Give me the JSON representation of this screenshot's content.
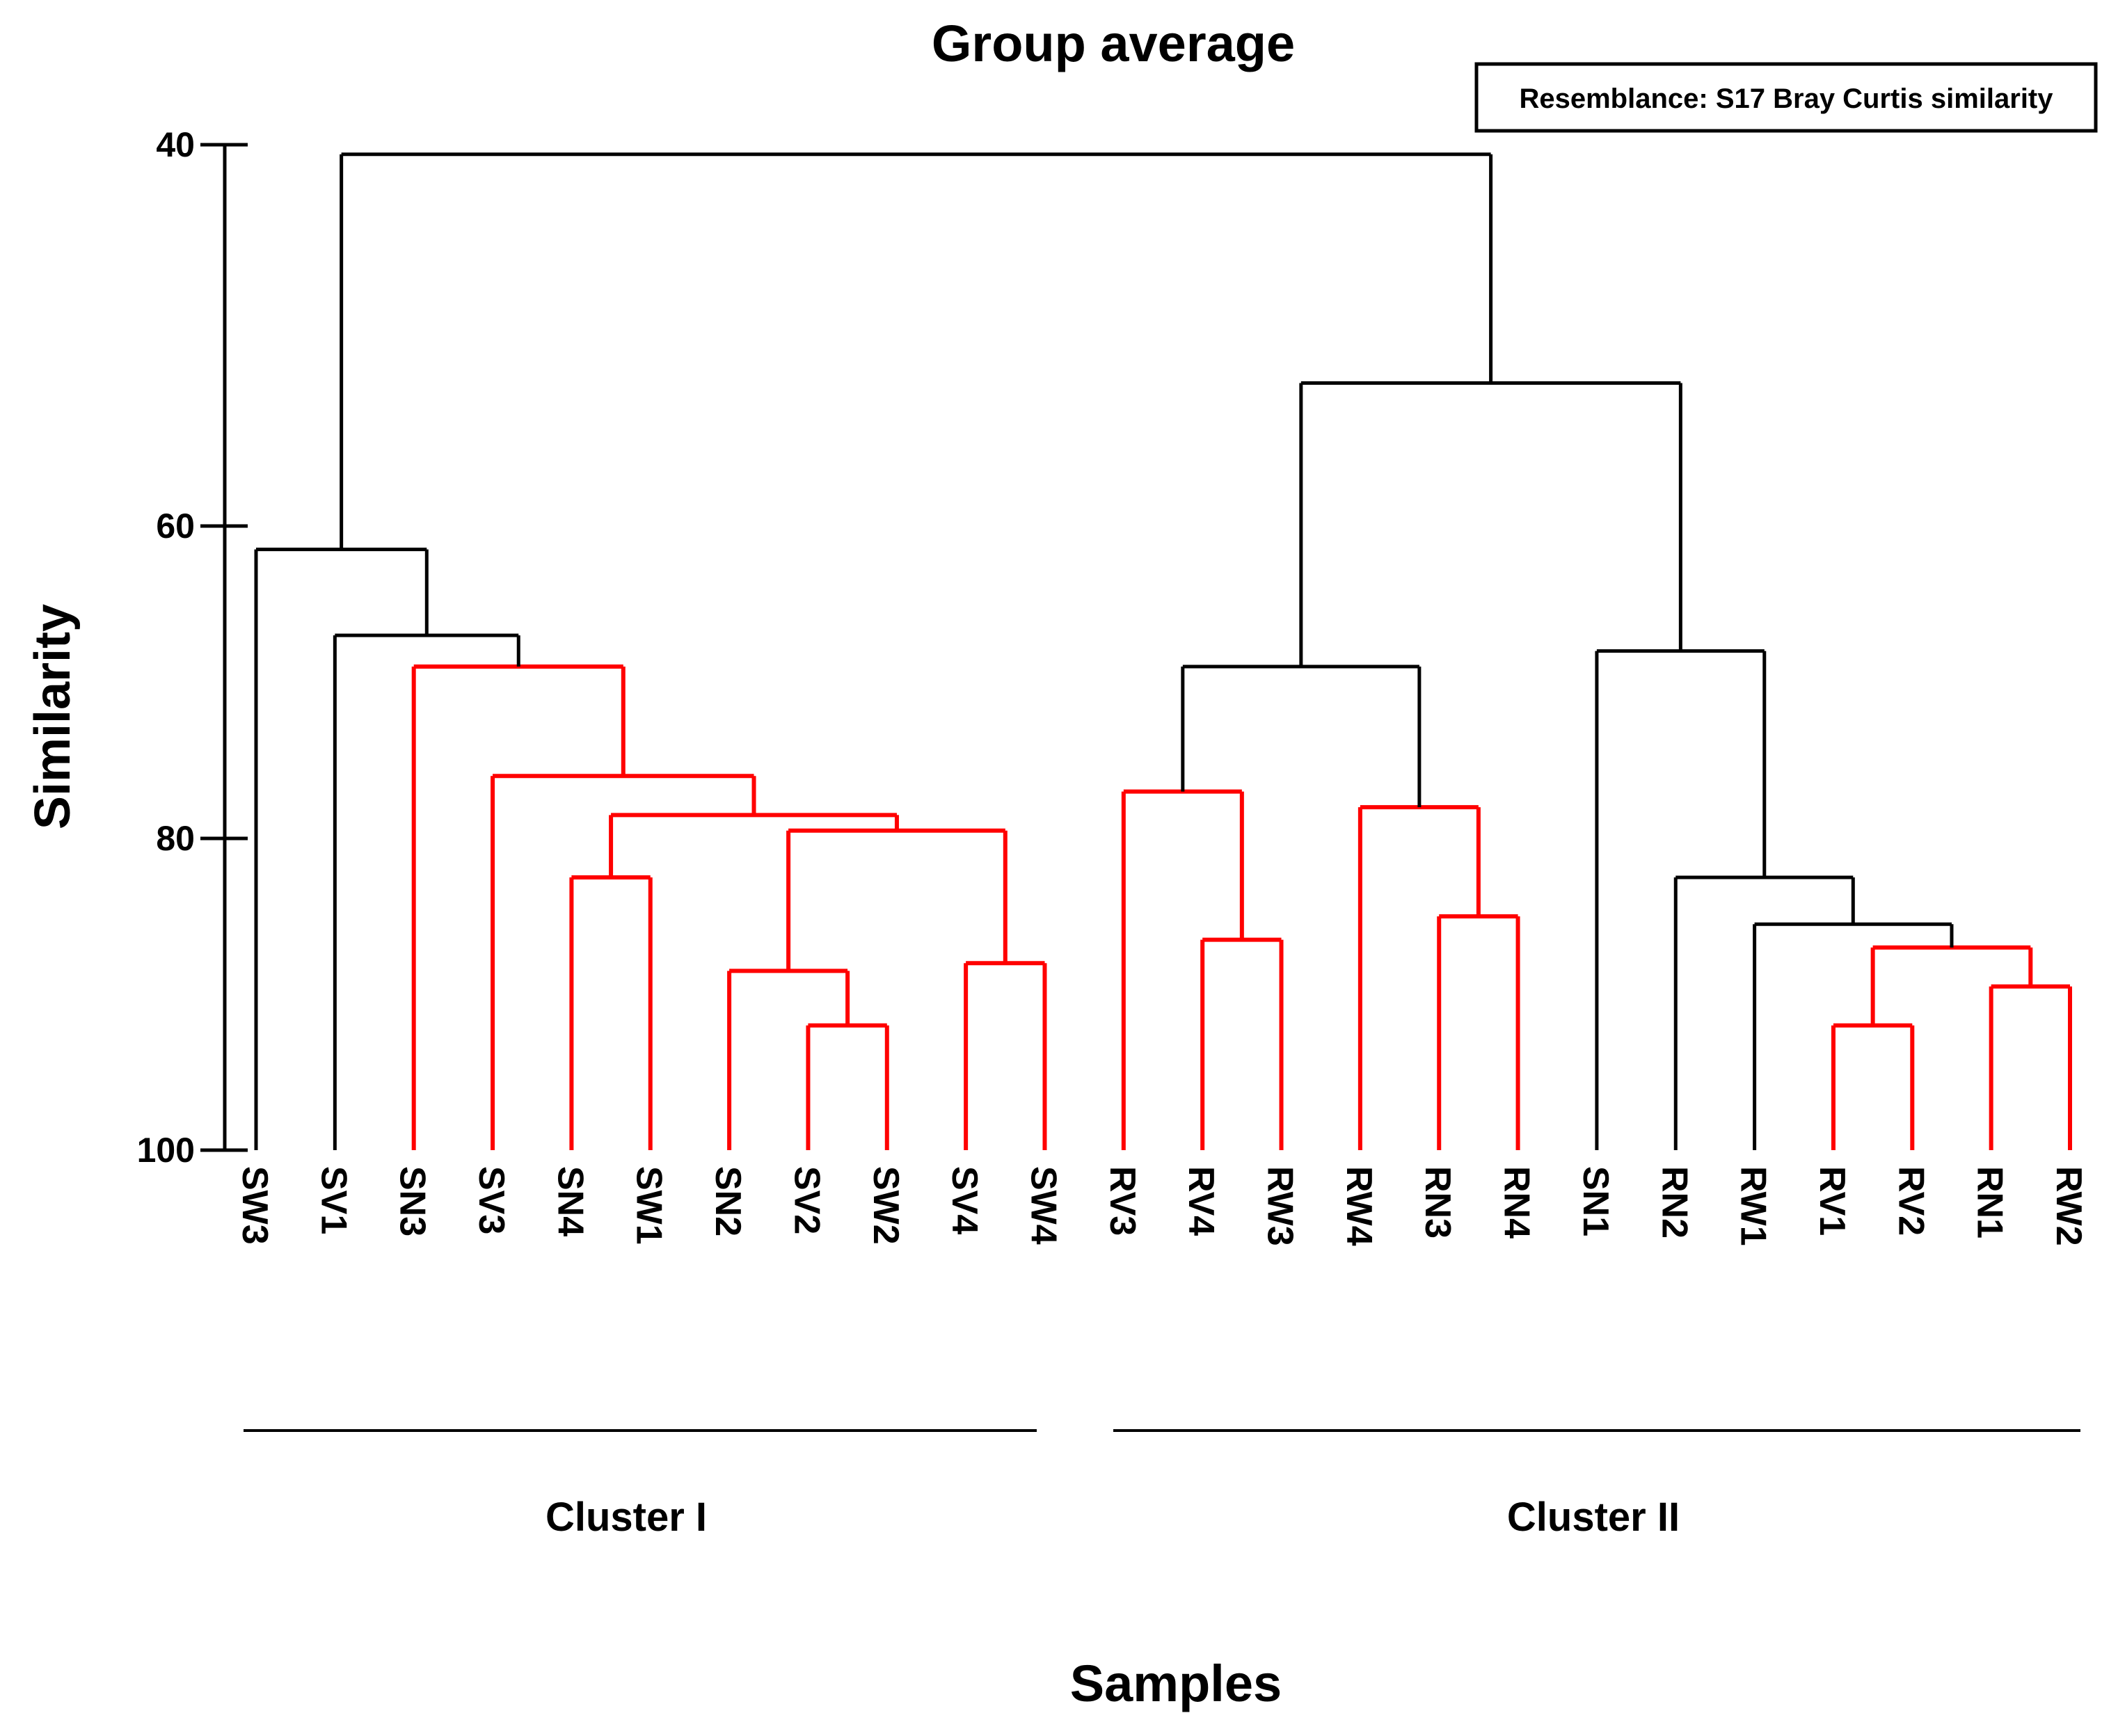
{
  "title": "Group average",
  "resemblance_box": {
    "text": "Resemblance: S17 Bray Curtis similarity"
  },
  "y_axis": {
    "label": "Similarity",
    "ticks": [
      40,
      60,
      80,
      100
    ],
    "min": 40,
    "max": 100,
    "inverted": true
  },
  "x_axis": {
    "label": "Samples"
  },
  "cluster_annotations": [
    {
      "label": "Cluster I"
    },
    {
      "label": "Cluster II"
    }
  ],
  "colors": {
    "significant_branch": "#000000",
    "non_significant_branch": "#ff0000",
    "background": "#ffffff"
  },
  "chart_data": {
    "type": "dendrogram",
    "title": "Group average",
    "ylabel": "Similarity",
    "xlabel": "Samples",
    "ylim": [
      40,
      100
    ],
    "leaves": [
      "SW3",
      "SV1",
      "SN3",
      "SV3",
      "SN4",
      "SW1",
      "SN2",
      "SV2",
      "SW2",
      "SV4",
      "SW4",
      "RV3",
      "RV4",
      "RW3",
      "RW4",
      "RN3",
      "RN4",
      "SN1",
      "RN2",
      "RW1",
      "RV1",
      "RV2",
      "RN1",
      "RW2"
    ],
    "merges": [
      {
        "id": "I1",
        "left": "SV2",
        "right": "SW2",
        "similarity": 92,
        "color": "red"
      },
      {
        "id": "H1",
        "left": "SN2",
        "right": "I1",
        "similarity": 88.5,
        "color": "red"
      },
      {
        "id": "J1",
        "left": "SV4",
        "right": "SW4",
        "similarity": 88,
        "color": "red"
      },
      {
        "id": "G1",
        "left": "H1",
        "right": "J1",
        "similarity": 79.5,
        "color": "red"
      },
      {
        "id": "F1",
        "left": "SN4",
        "right": "SW1",
        "similarity": 82.5,
        "color": "red"
      },
      {
        "id": "E1",
        "left": "F1",
        "right": "G1",
        "similarity": 78.5,
        "color": "red"
      },
      {
        "id": "D1",
        "left": "SV3",
        "right": "E1",
        "similarity": 76,
        "color": "red"
      },
      {
        "id": "C1",
        "left": "SN3",
        "right": "D1",
        "similarity": 69,
        "color": "red"
      },
      {
        "id": "B1",
        "left": "SV1",
        "right": "C1",
        "similarity": 67,
        "color": "black"
      },
      {
        "id": "A1",
        "left": "SW3",
        "right": "B1",
        "similarity": 61.5,
        "color": "black"
      },
      {
        "id": "U2",
        "left": "RV1",
        "right": "RV2",
        "similarity": 92,
        "color": "red"
      },
      {
        "id": "V2",
        "left": "RN1",
        "right": "RW2",
        "similarity": 89.5,
        "color": "red"
      },
      {
        "id": "T2",
        "left": "U2",
        "right": "V2",
        "similarity": 87,
        "color": "red"
      },
      {
        "id": "S2",
        "left": "RW1",
        "right": "T2",
        "similarity": 85.5,
        "color": "black"
      },
      {
        "id": "R2",
        "left": "RN2",
        "right": "S2",
        "similarity": 82.5,
        "color": "black"
      },
      {
        "id": "Q2",
        "left": "SN1",
        "right": "R2",
        "similarity": 68,
        "color": "black"
      },
      {
        "id": "P2",
        "left": "RV4",
        "right": "RW3",
        "similarity": 86.5,
        "color": "red"
      },
      {
        "id": "M2",
        "left": "RV3",
        "right": "P2",
        "similarity": 77,
        "color": "red"
      },
      {
        "id": "O2",
        "left": "RN3",
        "right": "RN4",
        "similarity": 85,
        "color": "red"
      },
      {
        "id": "N2",
        "left": "RW4",
        "right": "O2",
        "similarity": 78,
        "color": "red"
      },
      {
        "id": "L2",
        "left": "M2",
        "right": "N2",
        "similarity": 69,
        "color": "black"
      },
      {
        "id": "K2",
        "left": "L2",
        "right": "Q2",
        "similarity": 52.5,
        "color": "black"
      },
      {
        "id": "ROOT",
        "left": "A1",
        "right": "K2",
        "similarity": 40.5,
        "color": "black"
      }
    ],
    "cluster_membership": {
      "Cluster I": [
        "SW3",
        "SV1",
        "SN3",
        "SV3",
        "SN4",
        "SW1",
        "SN2",
        "SV2",
        "SW2",
        "SV4",
        "SW4"
      ],
      "Cluster II": [
        "RV3",
        "RV4",
        "RW3",
        "RW4",
        "RN3",
        "RN4",
        "SN1",
        "RN2",
        "RW1",
        "RV1",
        "RV2",
        "RN1",
        "RW2"
      ]
    },
    "legend_position": "top-right",
    "grid": false
  }
}
